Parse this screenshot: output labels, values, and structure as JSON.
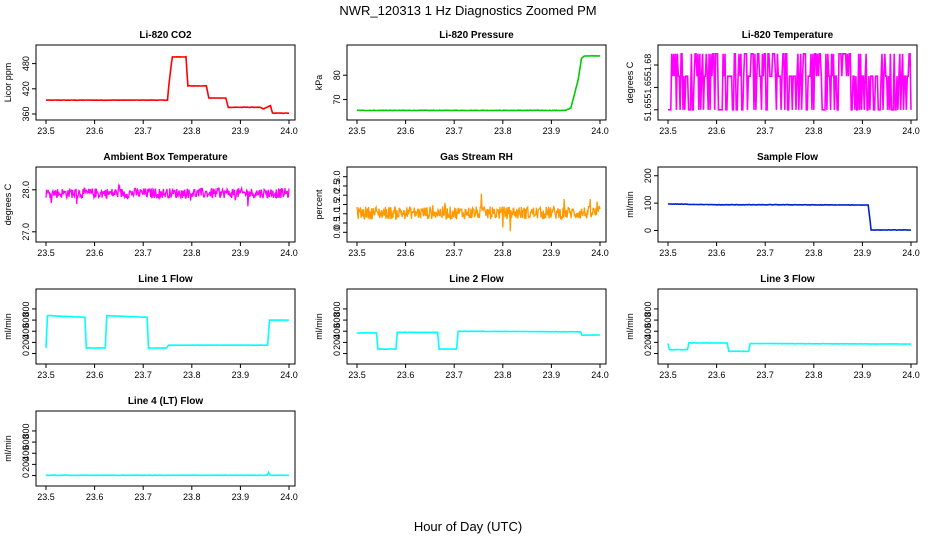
{
  "figure": {
    "title": "NWR_120313  1 Hz Diagnostics Zoomed PM",
    "xlabel": "Hour of Day (UTC)"
  },
  "chart_data": [
    {
      "type": "line",
      "title": "Li-820 CO2",
      "ylabel": "Licor ppm",
      "color": "#ff0000",
      "xlim": [
        23.5,
        24.0
      ],
      "ylim": [
        360,
        510
      ],
      "xticks": [
        "23.5",
        "23.6",
        "23.7",
        "23.8",
        "23.9",
        "24.0"
      ],
      "yticks": [
        "360",
        "420",
        "480"
      ],
      "x": [
        23.5,
        23.75,
        23.752,
        23.758,
        23.76,
        23.788,
        23.792,
        23.83,
        23.835,
        23.87,
        23.875,
        23.94,
        23.947,
        23.962,
        23.966,
        24.0
      ],
      "y": [
        393,
        393,
        420,
        480,
        496,
        496,
        427,
        427,
        398,
        398,
        376,
        376,
        372,
        380,
        362,
        362
      ]
    },
    {
      "type": "line",
      "title": "Li-820 Pressure",
      "ylabel": "kPa",
      "color": "#00cc00",
      "xlim": [
        23.5,
        24.0
      ],
      "ylim": [
        64,
        90
      ],
      "xticks": [
        "23.5",
        "23.6",
        "23.7",
        "23.8",
        "23.9",
        "24.0"
      ],
      "yticks": [
        "70",
        "80"
      ],
      "x": [
        23.5,
        23.93,
        23.94,
        23.955,
        23.962,
        23.968,
        24.0
      ],
      "y": [
        65.5,
        65.5,
        66.5,
        78,
        87,
        88,
        88
      ]
    },
    {
      "type": "line",
      "title": "Li-820 Temperature",
      "ylabel": "degrees C",
      "color": "#ff00ff",
      "xlim": [
        23.5,
        24.0
      ],
      "ylim": [
        51.645,
        51.69
      ],
      "xticks": [
        "23.5",
        "23.6",
        "23.7",
        "23.8",
        "23.9",
        "24.0"
      ],
      "yticks": [
        "51.65",
        "51.65",
        "51.68"
      ],
      "levels": [
        51.648,
        51.672,
        51.688
      ]
    },
    {
      "type": "line",
      "title": "Ambient Box Temperature",
      "ylabel": "degrees C",
      "color": "#ff00ff",
      "xlim": [
        23.5,
        24.0
      ],
      "ylim": [
        26.9,
        28.4
      ],
      "xticks": [
        "23.5",
        "23.6",
        "23.7",
        "23.8",
        "23.9",
        "24.0"
      ],
      "yticks": [
        "27.0",
        "28.0"
      ],
      "mean": 27.92,
      "spread": 0.12
    },
    {
      "type": "line",
      "title": "Gas Stream RH",
      "ylabel": "percent",
      "color": "#ff9900",
      "xlim": [
        23.5,
        24.0
      ],
      "ylim": [
        -0.2,
        3.2
      ],
      "xticks": [
        "23.5",
        "23.6",
        "23.7",
        "23.8",
        "23.9",
        "24.0"
      ],
      "yticks": [
        "0.0",
        "0.5",
        "1.0",
        "1.5",
        "2.0",
        "2.5",
        "3.0"
      ],
      "mean": 1.05,
      "spread": 0.35
    },
    {
      "type": "line",
      "title": "Sample Flow",
      "ylabel": "ml/min",
      "color": "#0022cc",
      "xlim": [
        23.5,
        24.0
      ],
      "ylim": [
        -20,
        210
      ],
      "xticks": [
        "23.5",
        "23.6",
        "23.7",
        "23.8",
        "23.9",
        "24.0"
      ],
      "yticks": [
        "0",
        "100",
        "200"
      ],
      "x": [
        23.5,
        23.6,
        23.75,
        23.912,
        23.918,
        24.0
      ],
      "y": [
        97,
        94,
        94,
        93,
        2,
        2
      ]
    },
    {
      "type": "line",
      "title": "Line 1 Flow",
      "ylabel": "ml/min",
      "color": "#00ffff",
      "xlim": [
        23.5,
        24.0
      ],
      "ylim": [
        -80,
        1050
      ],
      "xticks": [
        "23.5",
        "23.6",
        "23.7",
        "23.8",
        "23.9",
        "24.0"
      ],
      "yticks": [
        "0",
        "200",
        "400",
        "600",
        "800"
      ],
      "x": [
        23.5,
        23.503,
        23.58,
        23.583,
        23.622,
        23.625,
        23.708,
        23.711,
        23.748,
        23.752,
        23.956,
        23.96,
        24.0
      ],
      "y": [
        100,
        680,
        650,
        100,
        100,
        680,
        650,
        100,
        100,
        150,
        150,
        600,
        600
      ]
    },
    {
      "type": "line",
      "title": "Line 2 Flow",
      "ylabel": "ml/min",
      "color": "#00ffff",
      "xlim": [
        23.5,
        24.0
      ],
      "ylim": [
        -80,
        1050
      ],
      "xticks": [
        "23.5",
        "23.6",
        "23.7",
        "23.8",
        "23.9",
        "24.0"
      ],
      "yticks": [
        "0",
        "200",
        "400",
        "600",
        "800"
      ],
      "x": [
        23.5,
        23.54,
        23.543,
        23.58,
        23.583,
        23.666,
        23.669,
        23.705,
        23.708,
        23.96,
        23.963,
        24.0
      ],
      "y": [
        370,
        370,
        80,
        80,
        380,
        380,
        80,
        80,
        400,
        390,
        330,
        330
      ]
    },
    {
      "type": "line",
      "title": "Line 3 Flow",
      "ylabel": "ml/min",
      "color": "#00ffff",
      "xlim": [
        23.5,
        24.0
      ],
      "ylim": [
        -80,
        1050
      ],
      "xticks": [
        "23.5",
        "23.6",
        "23.7",
        "23.8",
        "23.9",
        "24.0"
      ],
      "yticks": [
        "0",
        "200",
        "400",
        "600",
        "800"
      ],
      "x": [
        23.5,
        23.503,
        23.54,
        23.543,
        23.622,
        23.625,
        23.666,
        23.669,
        24.0
      ],
      "y": [
        180,
        70,
        70,
        190,
        190,
        40,
        40,
        180,
        170
      ]
    },
    {
      "type": "line",
      "title": "Line 4 (LT) Flow",
      "ylabel": "ml/min",
      "color": "#00ffff",
      "xlim": [
        23.5,
        24.0
      ],
      "ylim": [
        -80,
        1050
      ],
      "xticks": [
        "23.5",
        "23.6",
        "23.7",
        "23.8",
        "23.9",
        "24.0"
      ],
      "yticks": [
        "0",
        "200",
        "400",
        "600",
        "800"
      ],
      "x": [
        23.5,
        23.955,
        23.958,
        23.961,
        24.0
      ],
      "y": [
        5,
        5,
        60,
        5,
        5
      ]
    }
  ]
}
